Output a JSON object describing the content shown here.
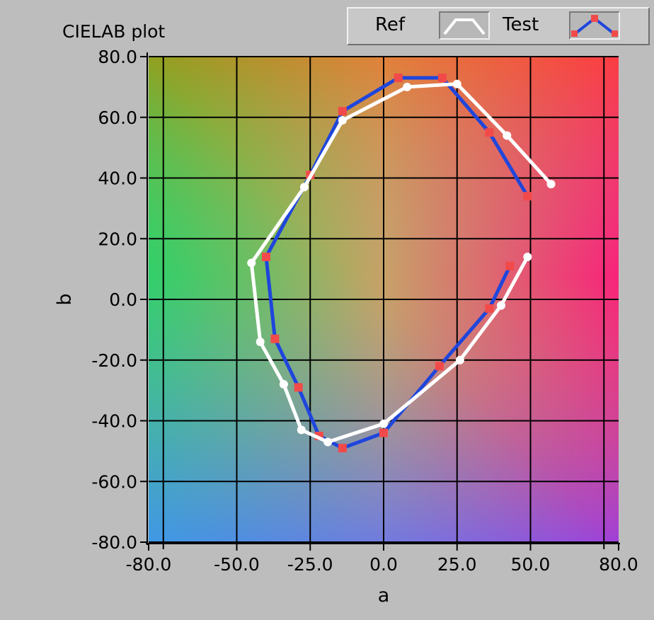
{
  "title": "CIELAB plot",
  "legend": {
    "ref_label": "Ref",
    "test_label": "Test"
  },
  "colors": {
    "ref_line": "#ffffff",
    "ref_marker": "#ffffff",
    "test_line": "#1f46dc",
    "test_marker": "#f24a4a",
    "grid": "#000000",
    "background": "#bdbdbd"
  },
  "chart_data": {
    "type": "line",
    "title": "CIELAB plot",
    "xlabel": "a",
    "ylabel": "b",
    "xlim": [
      -80,
      80
    ],
    "ylim": [
      -80,
      80
    ],
    "x_ticks": [
      "-80.0",
      "-50.0",
      "-25.0",
      "0.0",
      "25.0",
      "50.0",
      "80.0"
    ],
    "y_ticks": [
      "80.0",
      "60.0",
      "40.0",
      "20.0",
      "0.0",
      "-20.0",
      "-40.0",
      "-60.0",
      "-80.0"
    ],
    "grid": true,
    "legend_position": "top-right",
    "series": [
      {
        "name": "Ref",
        "points": [
          [
            57,
            38
          ],
          [
            42,
            54
          ],
          [
            25,
            71
          ],
          [
            8,
            70
          ],
          [
            -14,
            59
          ],
          [
            -27,
            37
          ],
          [
            -45,
            12
          ],
          [
            -42,
            -14
          ],
          [
            -34,
            -28
          ],
          [
            -28,
            -43
          ],
          [
            -19,
            -47
          ],
          [
            0,
            -41
          ],
          [
            26,
            -20
          ],
          [
            40,
            -2
          ],
          [
            49,
            14
          ]
        ]
      },
      {
        "name": "Test",
        "points": [
          [
            49,
            34
          ],
          [
            36,
            55
          ],
          [
            20,
            73
          ],
          [
            5,
            73
          ],
          [
            -14,
            62
          ],
          [
            -25,
            41
          ],
          [
            -40,
            14
          ],
          [
            -37,
            -13
          ],
          [
            -29,
            -29
          ],
          [
            -22,
            -45
          ],
          [
            -14,
            -49
          ],
          [
            0,
            -44
          ],
          [
            19,
            -22
          ],
          [
            36,
            -3
          ],
          [
            43,
            11
          ]
        ]
      }
    ]
  }
}
